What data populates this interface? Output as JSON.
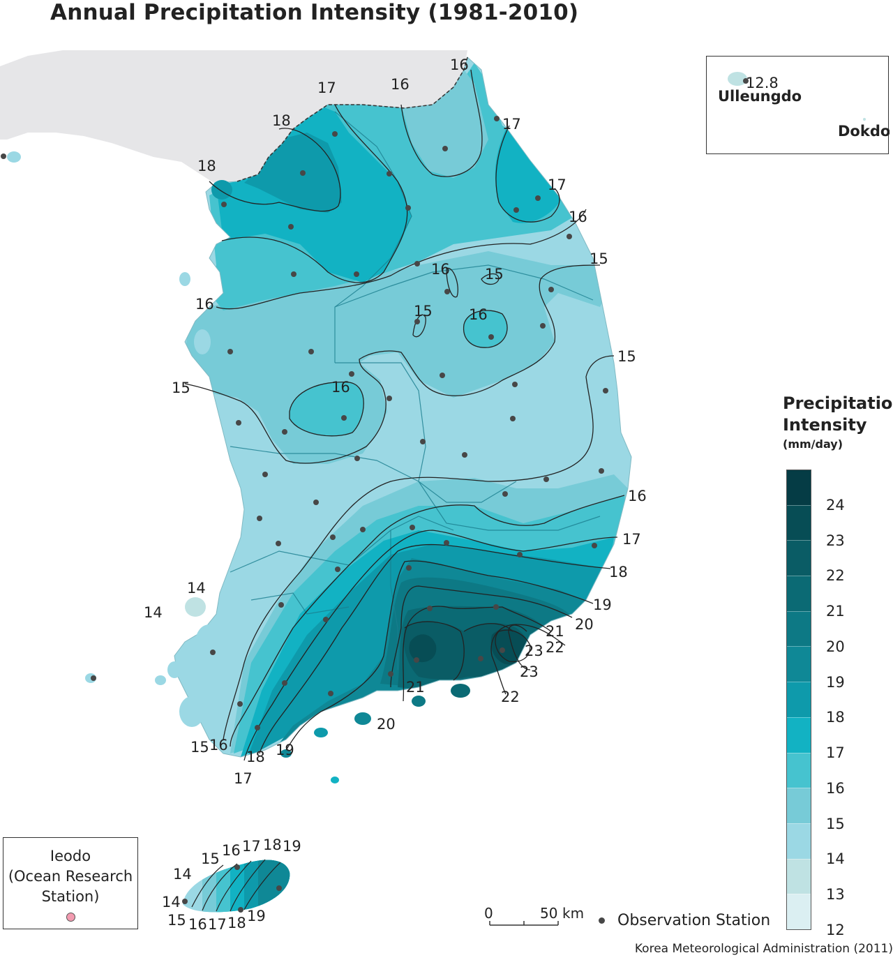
{
  "title": "Annual Precipitation Intensity (1981-2010)",
  "legend": {
    "title_line1": "Precipitation",
    "title_line2": "Intensity",
    "unit": "(mm/day)",
    "tick_labels": [
      "24",
      "23",
      "22",
      "21",
      "20",
      "19",
      "18",
      "17",
      "16",
      "15",
      "14",
      "13",
      "12"
    ],
    "colors_top_to_bottom": [
      "#053c45",
      "#074d55",
      "#0a5c65",
      "#0b6a74",
      "#0d7985",
      "#0f8896",
      "#0e9aab",
      "#12b2c3",
      "#46c3cf",
      "#77cbd7",
      "#9bd8e4",
      "#bfe2e3",
      "#dbeff2"
    ]
  },
  "colors": {
    "land_other": "#e6e6e8",
    "zone_13": "#bfe2e3",
    "zone_14": "#9bd8e4",
    "zone_15": "#77cbd7",
    "zone_16": "#46c3cf",
    "zone_17": "#12b2c3",
    "zone_18": "#0e9aab",
    "zone_19": "#0f8896",
    "zone_20": "#0d7985",
    "zone_21": "#0b6a74",
    "zone_22": "#0a5c65",
    "zone_23": "#074d55",
    "station": "#474747",
    "ieodo_marker": "#f29bb0"
  },
  "contour_labels": [
    "16",
    "17",
    "16",
    "18",
    "17",
    "18",
    "17",
    "16",
    "15",
    "16",
    "15",
    "16",
    "15",
    "15",
    "16",
    "15",
    "16",
    "17",
    "18",
    "19",
    "20",
    "21",
    "22",
    "23",
    "23",
    "22",
    "21",
    "20",
    "19",
    "18",
    "17",
    "16",
    "15",
    "14",
    "14",
    "14",
    "15",
    "16",
    "17",
    "18",
    "19",
    "14",
    "15",
    "16",
    "17",
    "18",
    "19"
  ],
  "ulleungdo": {
    "name": "Ulleungdo",
    "value": "12.8",
    "dokdo_name": "Dokdo"
  },
  "ieodo": {
    "line1": "Ieodo",
    "line2": "(Ocean Research",
    "line3": "Station)"
  },
  "scale": {
    "zero": "0",
    "fifty": "50",
    "unit": "km"
  },
  "observation_station_label": "Observation Station",
  "source": "Korea Meteorological Administration (2011)"
}
